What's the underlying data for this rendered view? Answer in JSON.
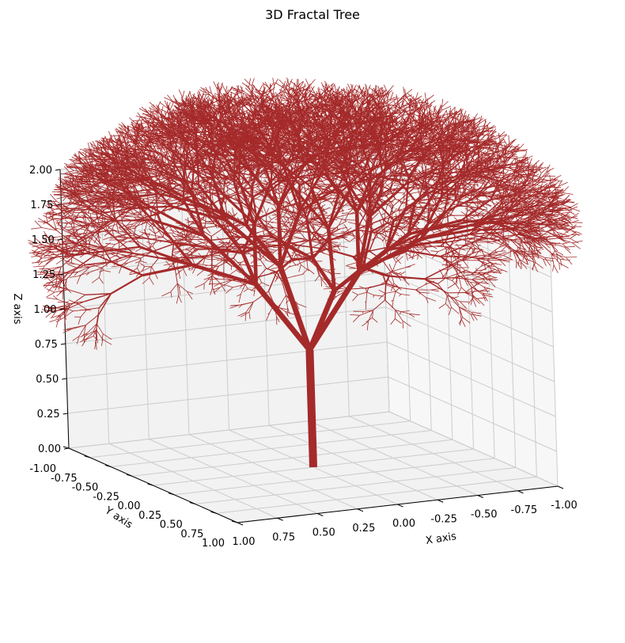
{
  "chart_data": {
    "type": "3d-line",
    "title": "3D Fractal Tree",
    "xlabel": "X axis",
    "ylabel": "Y axis",
    "zlabel": "Z axis",
    "xlim": [
      -1,
      1
    ],
    "ylim": [
      -1,
      1
    ],
    "zlim": [
      0,
      2
    ],
    "x_ticks": [
      "-1.00",
      "-0.75",
      "-0.50",
      "-0.25",
      "0.00",
      "0.25",
      "0.50",
      "0.75",
      "1.00"
    ],
    "y_ticks": [
      "-1.00",
      "-0.75",
      "-0.50",
      "-0.25",
      "0.00",
      "0.25",
      "0.50",
      "0.75",
      "1.00"
    ],
    "z_ticks": [
      "0.00",
      "0.25",
      "0.50",
      "0.75",
      "1.00",
      "1.25",
      "1.50",
      "1.75",
      "2.00"
    ],
    "grid": true,
    "color": "#a52a2a",
    "tree": {
      "base": [
        0,
        0,
        0
      ],
      "trunk_length": 0.4,
      "depth": 9,
      "length_ratio": 0.72,
      "branch_angle_deg": 32
    },
    "colors": {
      "pane": "#f2f2f2",
      "pane_side": "#f7f7f7",
      "grid": "#cccccc",
      "branch": "#a52a2a"
    }
  }
}
